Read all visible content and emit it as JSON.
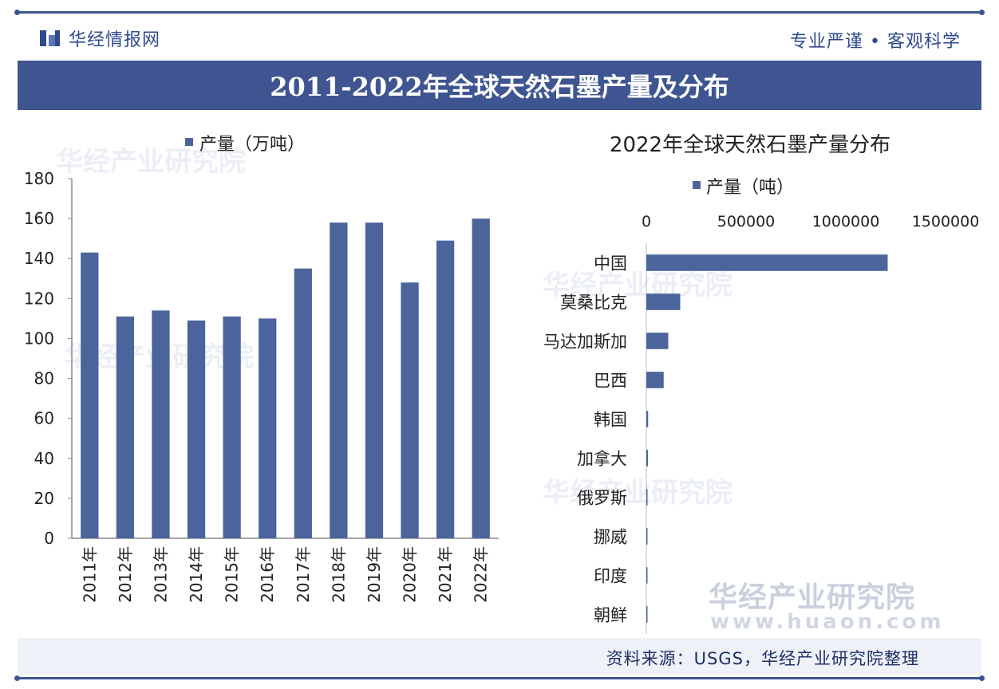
{
  "header": {
    "brand_name": "华经情报网",
    "slogan": "专业严谨 • 客观科学"
  },
  "title": "2011-2022年全球天然石墨产量及分布",
  "watermark": {
    "name": "华经产业研究院",
    "url": "www.huaon.com"
  },
  "footer": {
    "source": "资料来源：USGS，华经产业研究院整理"
  },
  "colors": {
    "accent": "#3e5591",
    "bar": "#4b649c",
    "axis": "#8a8a8a"
  },
  "chart_data": [
    {
      "type": "bar",
      "title": "",
      "legend": "产量（万吨）",
      "legend_position": "top-left",
      "categories": [
        "2011年",
        "2012年",
        "2013年",
        "2014年",
        "2015年",
        "2016年",
        "2017年",
        "2018年",
        "2019年",
        "2020年",
        "2021年",
        "2022年"
      ],
      "values": [
        143,
        111,
        114,
        109,
        111,
        110,
        135,
        158,
        158,
        128,
        149,
        160
      ],
      "ylim": [
        0,
        180
      ],
      "yticks": [
        "0",
        "20",
        "40",
        "60",
        "80",
        "100",
        "120",
        "140",
        "160",
        "180"
      ],
      "xlabel": "",
      "ylabel": "",
      "grid": false
    },
    {
      "type": "bar",
      "orientation": "horizontal",
      "title": "2022年全球天然石墨产量分布",
      "legend": "产量（吨）",
      "legend_position": "top",
      "categories": [
        "中国",
        "莫桑比克",
        "马达加斯加",
        "巴西",
        "韩国",
        "加拿大",
        "俄罗斯",
        "挪威",
        "印度",
        "朝鲜"
      ],
      "values": [
        1210000,
        170000,
        110000,
        87000,
        9000,
        8000,
        5000,
        2000,
        1000,
        1000
      ],
      "xlim": [
        0,
        1500000
      ],
      "xticks": [
        "0",
        "500000",
        "1000000",
        "1500000"
      ],
      "xlabel": "",
      "ylabel": "",
      "grid": false
    }
  ]
}
